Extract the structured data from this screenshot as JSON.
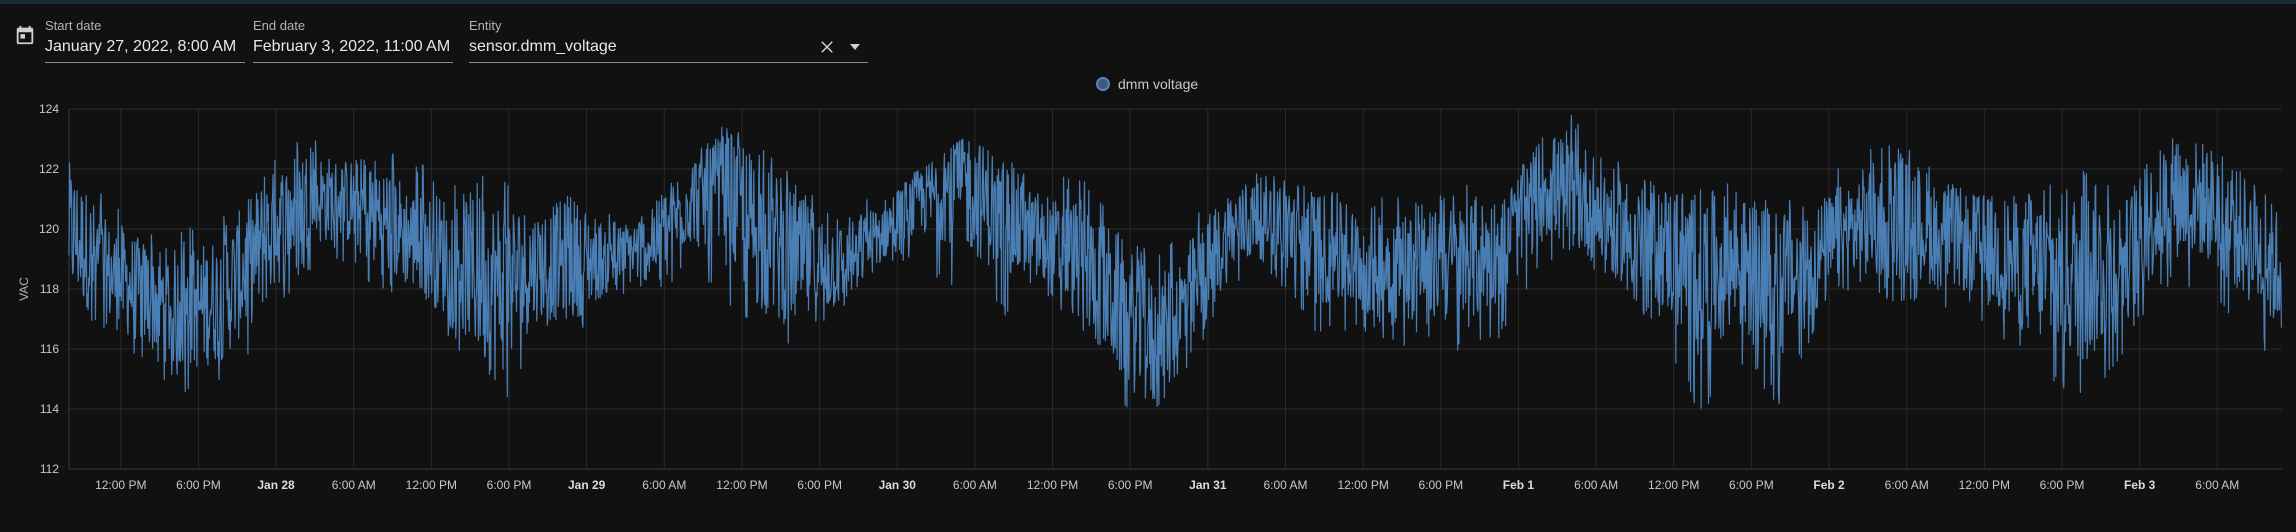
{
  "pickers": {
    "start_label": "Start date",
    "start_value": "January 27, 2022, 8:00 AM",
    "end_label": "End date",
    "end_value": "February 3, 2022, 11:00 AM",
    "entity_label": "Entity",
    "entity_value": "sensor.dmm_voltage"
  },
  "icons": {
    "calendar": "calendar-icon",
    "clear": "close-icon",
    "dropdown": "chevron-down-icon"
  },
  "colors": {
    "background": "#111111",
    "series": "#4a7fb5",
    "grid": "#2a2a2a"
  },
  "chart_data": {
    "type": "line",
    "title": "",
    "ylabel": "VAC",
    "xlabel": "",
    "ylim": [
      112,
      124
    ],
    "yticks": [
      112,
      114,
      116,
      118,
      120,
      122,
      124
    ],
    "xlim": [
      "2022-01-27T08:00",
      "2022-02-03T11:00"
    ],
    "xticks": [
      {
        "t": "2022-01-27T12:00",
        "label": "12:00 PM",
        "major": false
      },
      {
        "t": "2022-01-27T18:00",
        "label": "6:00 PM",
        "major": false
      },
      {
        "t": "2022-01-28T00:00",
        "label": "Jan 28",
        "major": true
      },
      {
        "t": "2022-01-28T06:00",
        "label": "6:00 AM",
        "major": false
      },
      {
        "t": "2022-01-28T12:00",
        "label": "12:00 PM",
        "major": false
      },
      {
        "t": "2022-01-28T18:00",
        "label": "6:00 PM",
        "major": false
      },
      {
        "t": "2022-01-29T00:00",
        "label": "Jan 29",
        "major": true
      },
      {
        "t": "2022-01-29T06:00",
        "label": "6:00 AM",
        "major": false
      },
      {
        "t": "2022-01-29T12:00",
        "label": "12:00 PM",
        "major": false
      },
      {
        "t": "2022-01-29T18:00",
        "label": "6:00 PM",
        "major": false
      },
      {
        "t": "2022-01-30T00:00",
        "label": "Jan 30",
        "major": true
      },
      {
        "t": "2022-01-30T06:00",
        "label": "6:00 AM",
        "major": false
      },
      {
        "t": "2022-01-30T12:00",
        "label": "12:00 PM",
        "major": false
      },
      {
        "t": "2022-01-30T18:00",
        "label": "6:00 PM",
        "major": false
      },
      {
        "t": "2022-01-31T00:00",
        "label": "Jan 31",
        "major": true
      },
      {
        "t": "2022-01-31T06:00",
        "label": "6:00 AM",
        "major": false
      },
      {
        "t": "2022-01-31T12:00",
        "label": "12:00 PM",
        "major": false
      },
      {
        "t": "2022-01-31T18:00",
        "label": "6:00 PM",
        "major": false
      },
      {
        "t": "2022-02-01T00:00",
        "label": "Feb 1",
        "major": true
      },
      {
        "t": "2022-02-01T06:00",
        "label": "6:00 AM",
        "major": false
      },
      {
        "t": "2022-02-01T12:00",
        "label": "12:00 PM",
        "major": false
      },
      {
        "t": "2022-02-01T18:00",
        "label": "6:00 PM",
        "major": false
      },
      {
        "t": "2022-02-02T00:00",
        "label": "Feb 2",
        "major": true
      },
      {
        "t": "2022-02-02T06:00",
        "label": "6:00 AM",
        "major": false
      },
      {
        "t": "2022-02-02T12:00",
        "label": "12:00 PM",
        "major": false
      },
      {
        "t": "2022-02-02T18:00",
        "label": "6:00 PM",
        "major": false
      },
      {
        "t": "2022-02-03T00:00",
        "label": "Feb 3",
        "major": true
      },
      {
        "t": "2022-02-03T06:00",
        "label": "6:00 AM",
        "major": false
      }
    ],
    "grid": true,
    "legend": "top-center",
    "series": [
      {
        "name": "dmm voltage",
        "x": [
          "2022-01-27T08:00",
          "2022-01-27T11:00",
          "2022-01-27T14:00",
          "2022-01-27T17:00",
          "2022-01-27T20:00",
          "2022-01-27T23:00",
          "2022-01-28T02:00",
          "2022-01-28T05:00",
          "2022-01-28T08:00",
          "2022-01-28T11:00",
          "2022-01-28T14:00",
          "2022-01-28T17:00",
          "2022-01-28T20:00",
          "2022-01-28T23:00",
          "2022-01-29T02:00",
          "2022-01-29T05:00",
          "2022-01-29T08:00",
          "2022-01-29T11:00",
          "2022-01-29T14:00",
          "2022-01-29T17:00",
          "2022-01-29T20:00",
          "2022-01-29T23:00",
          "2022-01-30T02:00",
          "2022-01-30T05:00",
          "2022-01-30T08:00",
          "2022-01-30T11:00",
          "2022-01-30T14:00",
          "2022-01-30T17:00",
          "2022-01-30T20:00",
          "2022-01-30T23:00",
          "2022-01-31T02:00",
          "2022-01-31T05:00",
          "2022-01-31T08:00",
          "2022-01-31T11:00",
          "2022-01-31T14:00",
          "2022-01-31T17:00",
          "2022-01-31T20:00",
          "2022-01-31T23:00",
          "2022-02-01T02:00",
          "2022-02-01T05:00",
          "2022-02-01T08:00",
          "2022-02-01T11:00",
          "2022-02-01T14:00",
          "2022-02-01T17:00",
          "2022-02-01T20:00",
          "2022-02-01T23:00",
          "2022-02-02T02:00",
          "2022-02-02T05:00",
          "2022-02-02T08:00",
          "2022-02-02T11:00",
          "2022-02-02T14:00",
          "2022-02-02T17:00",
          "2022-02-02T20:00",
          "2022-02-02T23:00",
          "2022-02-03T02:00",
          "2022-02-03T05:00",
          "2022-02-03T08:00",
          "2022-02-03T11:00"
        ],
        "min": [
          116.8,
          116.5,
          115.2,
          114.5,
          114.8,
          116.2,
          118.5,
          119.0,
          117.5,
          117.8,
          116.0,
          113.3,
          116.5,
          116.0,
          117.8,
          117.8,
          118.5,
          117.5,
          115.5,
          116.0,
          117.0,
          118.8,
          118.8,
          117.5,
          117.0,
          117.5,
          116.5,
          114.2,
          113.0,
          115.8,
          118.0,
          118.5,
          116.5,
          116.5,
          116.0,
          116.3,
          115.8,
          116.5,
          119.0,
          118.8,
          117.8,
          116.5,
          113.8,
          115.5,
          114.0,
          116.5,
          117.5,
          117.5,
          117.5,
          117.0,
          115.8,
          115.0,
          114.0,
          116.0,
          118.0,
          117.5,
          116.5,
          115.5
        ],
        "max": [
          122.8,
          121.0,
          120.0,
          120.0,
          120.5,
          122.0,
          123.2,
          122.5,
          122.8,
          122.2,
          122.0,
          121.8,
          121.5,
          121.5,
          120.5,
          121.0,
          122.5,
          123.6,
          122.5,
          121.5,
          120.5,
          121.5,
          122.0,
          123.0,
          122.5,
          121.5,
          122.0,
          120.5,
          119.0,
          120.8,
          121.5,
          122.2,
          121.8,
          121.0,
          121.5,
          121.0,
          121.5,
          121.0,
          123.8,
          123.8,
          122.5,
          122.0,
          121.5,
          121.5,
          120.8,
          121.5,
          122.5,
          123.2,
          122.5,
          121.5,
          121.5,
          121.8,
          122.0,
          121.5,
          123.2,
          122.8,
          122.0,
          121.0
        ],
        "mean": [
          120.0,
          118.5,
          117.8,
          117.2,
          117.8,
          119.5,
          121.0,
          121.0,
          120.5,
          119.5,
          119.0,
          118.0,
          118.8,
          119.0,
          119.0,
          119.5,
          121.0,
          121.0,
          119.5,
          118.8,
          118.8,
          120.0,
          121.0,
          121.5,
          120.5,
          119.5,
          119.0,
          117.5,
          116.0,
          118.0,
          120.0,
          120.5,
          119.5,
          119.0,
          118.8,
          118.8,
          118.8,
          119.5,
          121.5,
          121.0,
          120.0,
          119.5,
          118.5,
          118.8,
          118.0,
          119.0,
          120.0,
          120.5,
          120.0,
          119.5,
          119.0,
          118.5,
          118.5,
          119.0,
          121.0,
          121.0,
          119.8,
          118.5
        ]
      }
    ]
  }
}
